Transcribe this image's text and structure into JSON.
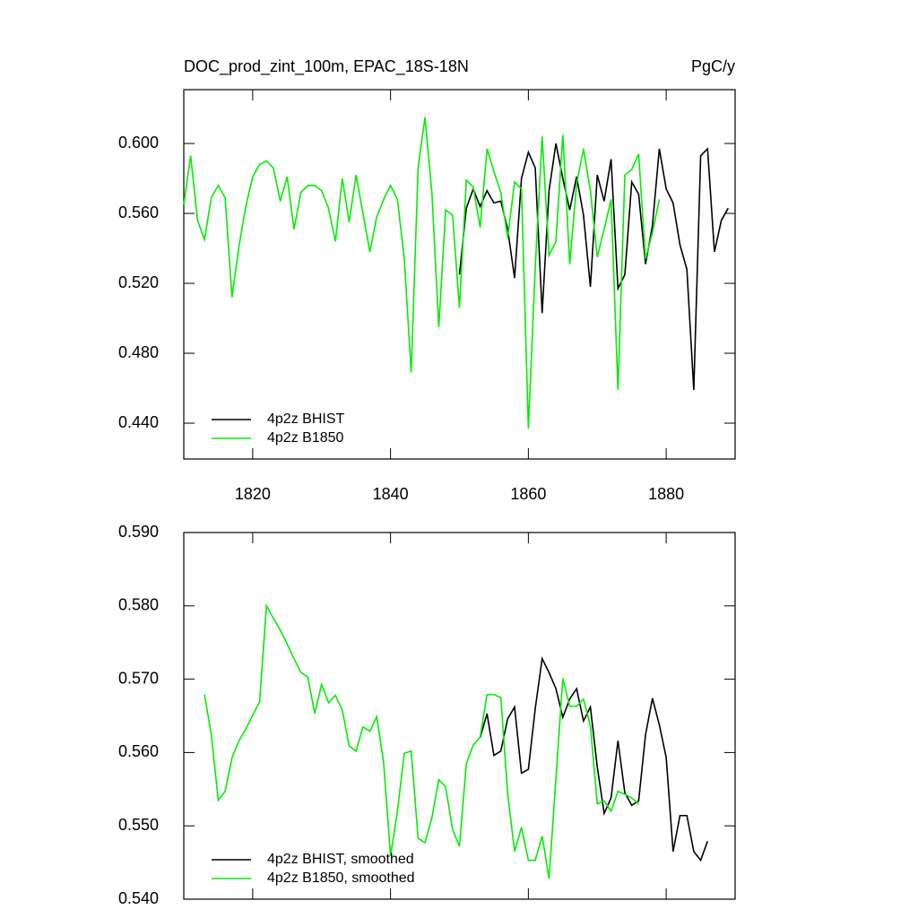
{
  "chart_data": [
    {
      "type": "line",
      "title": "DOC_prod_zint_100m, EPAC_18S-18N",
      "units": "PgC/y",
      "xlim": [
        1810,
        1890
      ],
      "xticks": [
        1820,
        1840,
        1860,
        1880
      ],
      "ylim": [
        0.4195,
        0.6308
      ],
      "yticks": [
        {
          "value": 0.44,
          "label": "0.440"
        },
        {
          "value": 0.48,
          "label": "0.480"
        },
        {
          "value": 0.52,
          "label": "0.520"
        },
        {
          "value": 0.56,
          "label": "0.560"
        },
        {
          "value": 0.6,
          "label": "0.600"
        }
      ],
      "legend": "lower left",
      "series": [
        {
          "name": "4p2z BHIST",
          "color": "#000000",
          "x": [
            1850,
            1851,
            1852,
            1853,
            1854,
            1855,
            1856,
            1857,
            1858,
            1859,
            1860,
            1861,
            1862,
            1863,
            1864,
            1865,
            1866,
            1867,
            1868,
            1869,
            1870,
            1871,
            1872,
            1873,
            1874,
            1875,
            1876,
            1877,
            1878,
            1879,
            1880,
            1881,
            1882,
            1883,
            1884,
            1885,
            1886,
            1887,
            1888,
            1889
          ],
          "values": [
            0.525,
            0.563,
            0.574,
            0.564,
            0.573,
            0.566,
            0.567,
            0.551,
            0.523,
            0.58,
            0.595,
            0.586,
            0.503,
            0.573,
            0.6,
            0.58,
            0.562,
            0.581,
            0.559,
            0.518,
            0.582,
            0.567,
            0.591,
            0.517,
            0.525,
            0.578,
            0.571,
            0.531,
            0.553,
            0.597,
            0.574,
            0.566,
            0.542,
            0.528,
            0.459,
            0.593,
            0.597,
            0.538,
            0.556,
            0.563
          ]
        },
        {
          "name": "4p2z B1850",
          "color": "#00ee00",
          "x": [
            1810,
            1811,
            1812,
            1813,
            1814,
            1815,
            1816,
            1817,
            1818,
            1819,
            1820,
            1821,
            1822,
            1823,
            1824,
            1825,
            1826,
            1827,
            1828,
            1829,
            1830,
            1831,
            1832,
            1833,
            1834,
            1835,
            1836,
            1837,
            1838,
            1839,
            1840,
            1841,
            1842,
            1843,
            1844,
            1845,
            1846,
            1847,
            1848,
            1849,
            1850,
            1851,
            1852,
            1853,
            1854,
            1855,
            1856,
            1857,
            1858,
            1859,
            1860,
            1861,
            1862,
            1863,
            1864,
            1865,
            1866,
            1867,
            1868,
            1869,
            1870,
            1871,
            1872,
            1873,
            1874,
            1875,
            1876,
            1877,
            1878,
            1879
          ],
          "values": [
            0.565,
            0.593,
            0.556,
            0.545,
            0.569,
            0.576,
            0.569,
            0.512,
            0.541,
            0.564,
            0.581,
            0.588,
            0.59,
            0.586,
            0.567,
            0.581,
            0.551,
            0.572,
            0.576,
            0.576,
            0.573,
            0.563,
            0.544,
            0.58,
            0.555,
            0.582,
            0.56,
            0.538,
            0.558,
            0.568,
            0.576,
            0.568,
            0.534,
            0.469,
            0.586,
            0.615,
            0.572,
            0.495,
            0.562,
            0.559,
            0.506,
            0.579,
            0.575,
            0.552,
            0.597,
            0.584,
            0.572,
            0.546,
            0.578,
            0.574,
            0.437,
            0.529,
            0.604,
            0.536,
            0.544,
            0.605,
            0.531,
            0.577,
            0.597,
            0.573,
            0.535,
            0.551,
            0.568,
            0.459,
            0.582,
            0.585,
            0.594,
            0.534,
            0.549,
            0.568
          ]
        }
      ]
    },
    {
      "type": "line",
      "xlim": [
        1810,
        1890
      ],
      "xticks": [
        1820,
        1840,
        1860,
        1880
      ],
      "ylim": [
        0.54,
        0.59
      ],
      "yticks": [
        {
          "value": 0.54,
          "label": "0.540"
        },
        {
          "value": 0.55,
          "label": "0.550"
        },
        {
          "value": 0.56,
          "label": "0.560"
        },
        {
          "value": 0.57,
          "label": "0.570"
        },
        {
          "value": 0.58,
          "label": "0.580"
        },
        {
          "value": 0.59,
          "label": "0.590"
        }
      ],
      "legend": "lower left",
      "series": [
        {
          "name": "4p2z BHIST, smoothed",
          "color": "#000000",
          "x": [
            1853,
            1854,
            1855,
            1856,
            1857,
            1858,
            1859,
            1860,
            1861,
            1862,
            1863,
            1864,
            1865,
            1866,
            1867,
            1868,
            1869,
            1870,
            1871,
            1872,
            1873,
            1874,
            1875,
            1876,
            1877,
            1878,
            1879,
            1880,
            1881,
            1882,
            1883,
            1884,
            1885,
            1886
          ],
          "values": [
            0.562,
            0.5653,
            0.5596,
            0.5602,
            0.5646,
            0.5662,
            0.5572,
            0.5577,
            0.566,
            0.5728,
            0.5709,
            0.5687,
            0.5648,
            0.5673,
            0.5687,
            0.5643,
            0.5662,
            0.558,
            0.5517,
            0.5538,
            0.5616,
            0.5545,
            0.5528,
            0.5534,
            0.5624,
            0.5674,
            0.5638,
            0.5593,
            0.5465,
            0.5514,
            0.5514,
            0.5465,
            0.5453,
            0.5479
          ]
        },
        {
          "name": "4p2z B1850, smoothed",
          "color": "#00ee00",
          "x": [
            1813,
            1814,
            1815,
            1816,
            1817,
            1818,
            1819,
            1820,
            1821,
            1822,
            1823,
            1824,
            1825,
            1826,
            1827,
            1828,
            1829,
            1830,
            1831,
            1832,
            1833,
            1834,
            1835,
            1836,
            1837,
            1838,
            1839,
            1840,
            1841,
            1842,
            1843,
            1844,
            1845,
            1846,
            1847,
            1848,
            1849,
            1850,
            1851,
            1852,
            1853,
            1854,
            1855,
            1856,
            1857,
            1858,
            1859,
            1860,
            1861,
            1862,
            1863,
            1864,
            1865,
            1866,
            1867,
            1868,
            1869,
            1870,
            1871,
            1872,
            1873,
            1874,
            1875,
            1876
          ],
          "values": [
            0.5679,
            0.5624,
            0.5535,
            0.5547,
            0.5593,
            0.5616,
            0.5632,
            0.5651,
            0.5669,
            0.58,
            0.5783,
            0.5767,
            0.5748,
            0.5728,
            0.5709,
            0.5703,
            0.5653,
            0.5693,
            0.5668,
            0.5678,
            0.5658,
            0.5609,
            0.5602,
            0.5635,
            0.5629,
            0.5649,
            0.5586,
            0.5459,
            0.552,
            0.5599,
            0.5602,
            0.5483,
            0.5477,
            0.5511,
            0.5563,
            0.5553,
            0.5495,
            0.5472,
            0.5585,
            0.561,
            0.5621,
            0.5679,
            0.5679,
            0.5675,
            0.5544,
            0.5465,
            0.5498,
            0.5453,
            0.5453,
            0.5486,
            0.5428,
            0.5565,
            0.5701,
            0.5663,
            0.5663,
            0.5673,
            0.5636,
            0.553,
            0.5534,
            0.552,
            0.5547,
            0.5543,
            0.5538,
            0.553
          ]
        }
      ]
    }
  ]
}
